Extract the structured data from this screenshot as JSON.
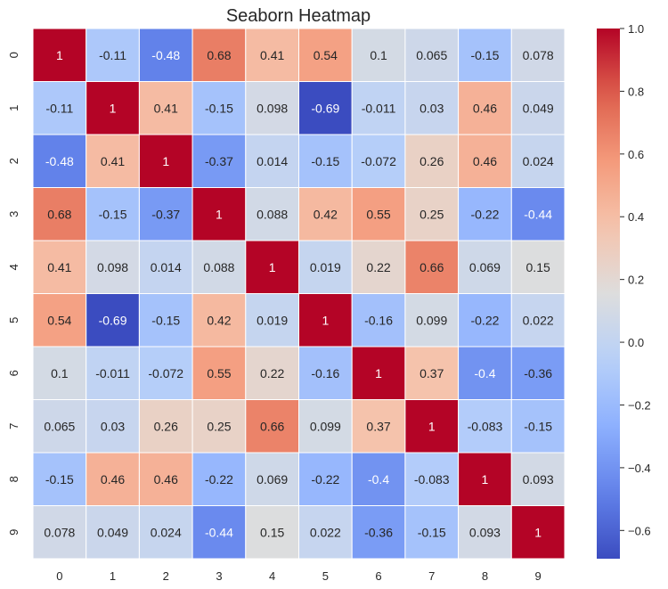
{
  "chart_data": {
    "type": "heatmap",
    "title": "Seaborn Heatmap",
    "xlabel": "",
    "ylabel": "",
    "x_categories": [
      "0",
      "1",
      "2",
      "3",
      "4",
      "5",
      "6",
      "7",
      "8",
      "9"
    ],
    "y_categories": [
      "0",
      "1",
      "2",
      "3",
      "4",
      "5",
      "6",
      "7",
      "8",
      "9"
    ],
    "values": [
      [
        1,
        -0.11,
        -0.48,
        0.68,
        0.41,
        0.54,
        0.1,
        0.065,
        -0.15,
        0.078
      ],
      [
        -0.11,
        1,
        0.41,
        -0.15,
        0.098,
        -0.69,
        -0.011,
        0.03,
        0.46,
        0.049
      ],
      [
        -0.48,
        0.41,
        1,
        -0.37,
        0.014,
        -0.15,
        -0.072,
        0.26,
        0.46,
        0.024
      ],
      [
        0.68,
        -0.15,
        -0.37,
        1,
        0.088,
        0.42,
        0.55,
        0.25,
        -0.22,
        -0.44
      ],
      [
        0.41,
        0.098,
        0.014,
        0.088,
        1,
        0.019,
        0.22,
        0.66,
        0.069,
        0.15
      ],
      [
        0.54,
        -0.69,
        -0.15,
        0.42,
        0.019,
        1,
        -0.16,
        0.099,
        -0.22,
        0.022
      ],
      [
        0.1,
        -0.011,
        -0.072,
        0.55,
        0.22,
        -0.16,
        1,
        0.37,
        -0.4,
        -0.36
      ],
      [
        0.065,
        0.03,
        0.26,
        0.25,
        0.66,
        0.099,
        0.37,
        1,
        -0.083,
        -0.15
      ],
      [
        -0.15,
        0.46,
        0.46,
        -0.22,
        0.069,
        -0.22,
        -0.4,
        -0.083,
        1,
        0.093
      ],
      [
        0.078,
        0.049,
        0.024,
        -0.44,
        0.15,
        0.022,
        -0.36,
        -0.15,
        0.093,
        1
      ]
    ],
    "annotations": true,
    "colormap": "coolwarm",
    "color_range": [
      -0.69,
      1.0
    ],
    "colorbar_ticks": [
      "1.0",
      "0.8",
      "0.6",
      "0.4",
      "0.2",
      "0.0",
      "-0.2",
      "-0.4",
      "-0.6"
    ],
    "colorbar_placement": "right",
    "cell_border_color": "#ffffff"
  }
}
